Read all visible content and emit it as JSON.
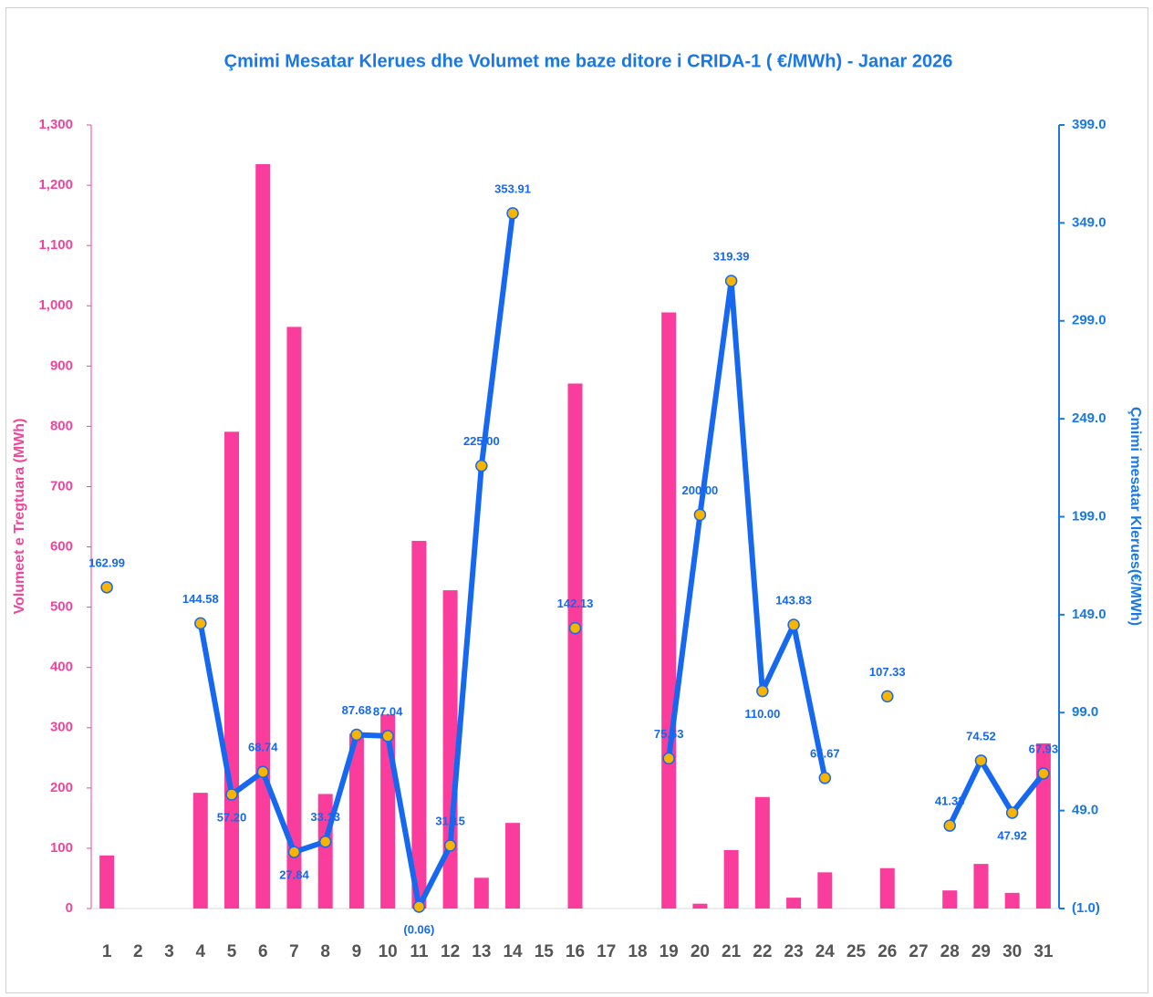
{
  "chart_data": {
    "type": "combo",
    "title": "Çmimi Mesatar Klerues dhe Volumet me baze ditore i CRIDA-1 ( €/MWh) - Janar 2026",
    "ylabel": "Volumeet e Tregtuara (MWh)",
    "y2label": "Çmimi mesatar Klerues(€/MWh)",
    "categories": [
      "1",
      "2",
      "3",
      "4",
      "5",
      "6",
      "7",
      "8",
      "9",
      "10",
      "11",
      "12",
      "13",
      "14",
      "15",
      "16",
      "17",
      "18",
      "19",
      "20",
      "21",
      "22",
      "23",
      "24",
      "25",
      "26",
      "27",
      "28",
      "29",
      "30",
      "31"
    ],
    "series": [
      {
        "type": "bar",
        "color": "#fa3c9c",
        "values": [
          88,
          0,
          0,
          192,
          791,
          1235,
          965,
          190,
          290,
          322,
          610,
          528,
          51,
          142,
          0,
          871,
          0,
          0,
          989,
          8,
          97,
          185,
          18,
          60,
          0,
          67,
          0,
          30,
          74,
          26,
          274
        ]
      },
      {
        "type": "line",
        "axis": "y2",
        "color": "#1668f0",
        "marker_color": "#f7b500",
        "values": [
          162.99,
          null,
          null,
          144.58,
          57.2,
          68.74,
          27.84,
          33.13,
          87.68,
          87.04,
          -0.06,
          31.15,
          225.0,
          353.91,
          null,
          142.13,
          null,
          null,
          75.63,
          200.0,
          319.39,
          110.0,
          143.83,
          65.67,
          null,
          107.33,
          null,
          41.33,
          74.52,
          47.92,
          67.93
        ],
        "value_labels": [
          "162.99",
          null,
          null,
          "144.58",
          "57.20",
          "68.74",
          "27.84",
          "33.13",
          "87.68",
          "87.04",
          "(0.06)",
          "31.15",
          "225.00",
          "353.91",
          null,
          "142.13",
          null,
          null,
          "75.63",
          "200.00",
          "319.39",
          "110.00",
          "143.83",
          "65.67",
          null,
          "107.33",
          null,
          "41.33",
          "74.52",
          "47.92",
          "67.93"
        ]
      }
    ],
    "ylim": [
      0,
      1300
    ],
    "yticks": [
      0,
      100,
      200,
      300,
      400,
      500,
      600,
      700,
      800,
      900,
      {
        "value": 1000,
        "label": "1,000"
      },
      {
        "value": 1100,
        "label": "1,100"
      },
      {
        "value": 1200,
        "label": "1,200"
      },
      {
        "value": 1300,
        "label": "1,300"
      }
    ],
    "y2lim": [
      -1,
      399
    ],
    "y2ticks": [
      {
        "value": -1,
        "label": "(1.0)"
      },
      {
        "value": 49,
        "label": "49.0"
      },
      {
        "value": 99,
        "label": "99.0"
      },
      {
        "value": 149,
        "label": "149.0"
      },
      {
        "value": 199,
        "label": "199.0"
      },
      {
        "value": 249,
        "label": "249.0"
      },
      {
        "value": 299,
        "label": "299.0"
      },
      {
        "value": 349,
        "label": "349.0"
      },
      {
        "value": 399,
        "label": "399.0"
      }
    ]
  }
}
